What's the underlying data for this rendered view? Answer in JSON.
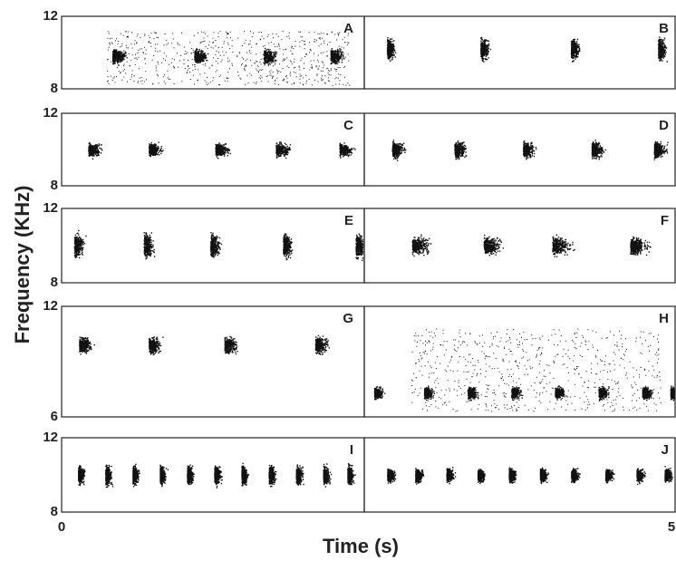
{
  "y_axis_label": "Frequency (KHz)",
  "x_axis_label": "Time (s)",
  "x_ticks": [
    "0",
    "5"
  ],
  "rows": [
    {
      "y_ticks": [
        "12",
        "8"
      ],
      "panels": [
        "A",
        "B"
      ]
    },
    {
      "y_ticks": [
        "12",
        "8"
      ],
      "panels": [
        "C",
        "D"
      ]
    },
    {
      "y_ticks": [
        "12",
        "8"
      ],
      "panels": [
        "E",
        "F"
      ]
    },
    {
      "y_ticks": [
        "12",
        "6"
      ],
      "panels": [
        "G",
        "H"
      ]
    },
    {
      "y_ticks": [
        "12",
        "8"
      ],
      "panels": [
        "I",
        "J"
      ]
    }
  ]
}
